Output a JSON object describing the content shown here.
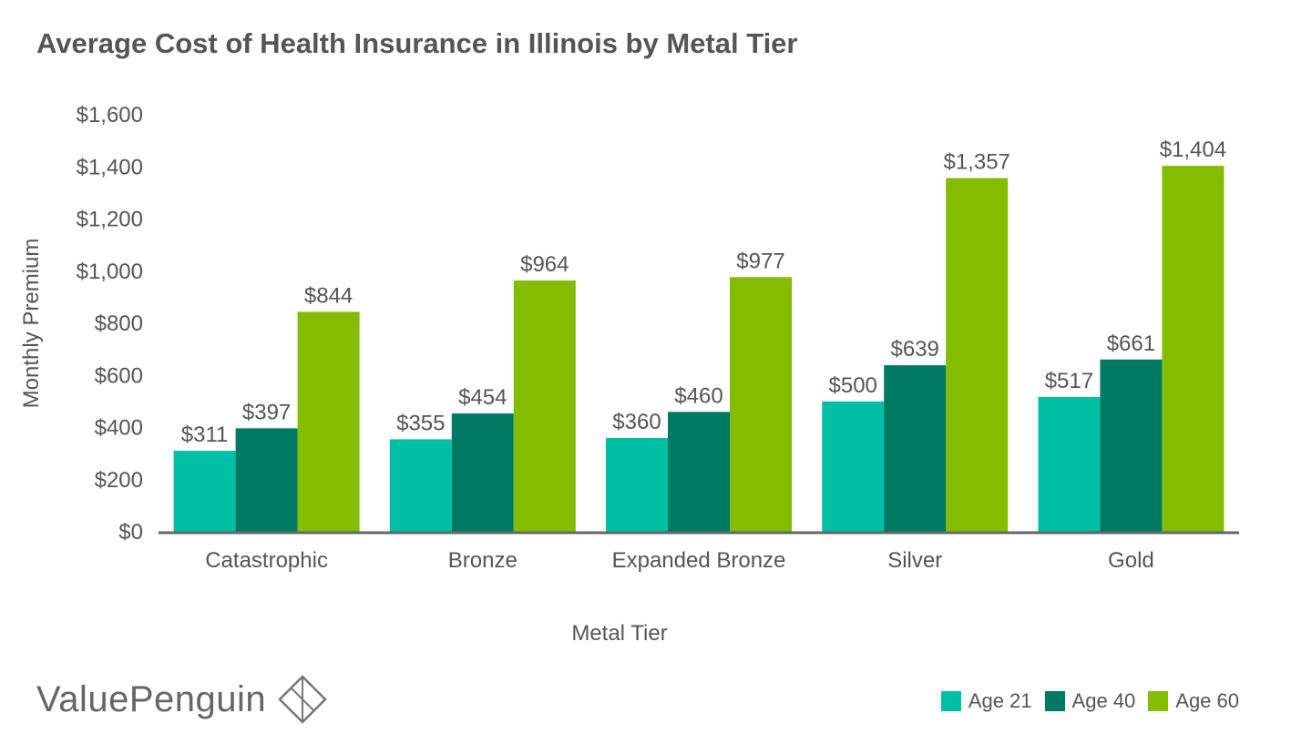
{
  "chart_data": {
    "type": "bar",
    "title": "Average Cost of Health Insurance in Illinois by Metal Tier",
    "xlabel": "Metal Tier",
    "ylabel": "Monthly Premium",
    "ylim": [
      0,
      1600
    ],
    "yticks": [
      0,
      200,
      400,
      600,
      800,
      1000,
      1200,
      1400,
      1600
    ],
    "ytick_labels": [
      "$0",
      "$200",
      "$400",
      "$600",
      "$800",
      "$1,000",
      "$1,200",
      "$1,400",
      "$1,600"
    ],
    "categories": [
      "Catastrophic",
      "Bronze",
      "Expanded Bronze",
      "Silver",
      "Gold"
    ],
    "series": [
      {
        "name": "Age 21",
        "color": "#00BFA5",
        "values": [
          311,
          355,
          360,
          500,
          517
        ],
        "labels": [
          "$311",
          "$355",
          "$360",
          "$500",
          "$517"
        ]
      },
      {
        "name": "Age 40",
        "color": "#007A63",
        "values": [
          397,
          454,
          460,
          639,
          661
        ],
        "labels": [
          "$397",
          "$454",
          "$460",
          "$639",
          "$661"
        ]
      },
      {
        "name": "Age 60",
        "color": "#84BC00",
        "values": [
          844,
          964,
          977,
          1357,
          1404
        ],
        "labels": [
          "$844",
          "$964",
          "$977",
          "$1,357",
          "$1,404"
        ]
      }
    ],
    "legend_position": "bottom-right",
    "grid": false
  },
  "brand": {
    "name": "ValuePenguin",
    "logo_icon": "diamond-logo-icon"
  }
}
